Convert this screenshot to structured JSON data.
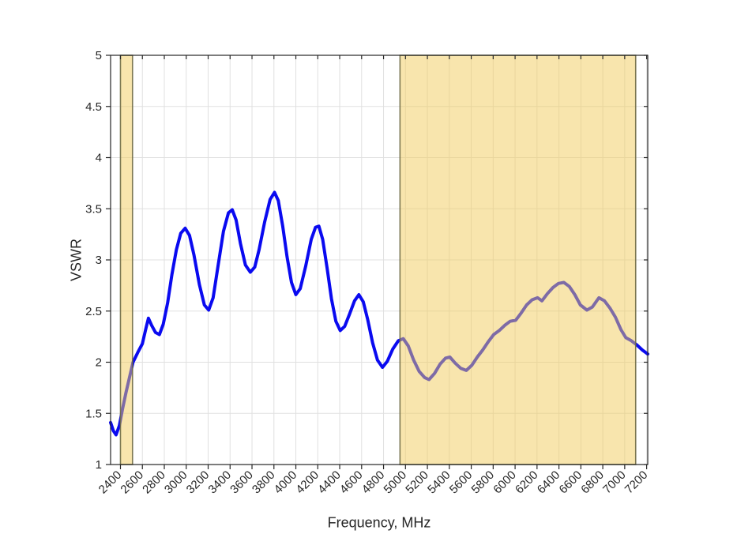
{
  "figure": {
    "xlabel": "Frequency, MHz",
    "ylabel": "VSWR"
  },
  "chart_data": {
    "type": "line",
    "title": "",
    "xlabel": "Frequency, MHz",
    "ylabel": "VSWR",
    "xlim": [
      2310,
      7210
    ],
    "ylim": [
      1,
      5
    ],
    "grid": true,
    "legend": "none",
    "xticks": [
      2400,
      2600,
      2800,
      3000,
      3200,
      3400,
      3600,
      3800,
      4000,
      4200,
      4400,
      4600,
      4800,
      5000,
      5200,
      5400,
      5600,
      5800,
      6000,
      6200,
      6400,
      6600,
      6800,
      7000,
      7200
    ],
    "yticks": [
      1,
      1.5,
      2,
      2.5,
      3,
      3.5,
      4,
      4.5,
      5
    ],
    "xtick_rotation_deg": 45,
    "colors": {
      "curve": "#0a0af0",
      "band_fill": "#f1cb5b",
      "band_fill_opacity": 0.5,
      "band_edge": "#6f6b45",
      "grid": "#e0e0e0",
      "axis": "#262626",
      "text": "#262626",
      "background": "#ffffff"
    },
    "shaded_regions": [
      {
        "x0": 2400,
        "x1": 2510
      },
      {
        "x0": 4950,
        "x1": 7100
      }
    ],
    "series": [
      {
        "name": "VSWR",
        "points": [
          [
            2310,
            1.41
          ],
          [
            2335,
            1.33
          ],
          [
            2360,
            1.29
          ],
          [
            2390,
            1.38
          ],
          [
            2420,
            1.55
          ],
          [
            2450,
            1.7
          ],
          [
            2480,
            1.84
          ],
          [
            2515,
            2.0
          ],
          [
            2560,
            2.1
          ],
          [
            2600,
            2.18
          ],
          [
            2632,
            2.33
          ],
          [
            2655,
            2.43
          ],
          [
            2685,
            2.36
          ],
          [
            2720,
            2.29
          ],
          [
            2755,
            2.27
          ],
          [
            2790,
            2.37
          ],
          [
            2830,
            2.58
          ],
          [
            2870,
            2.86
          ],
          [
            2910,
            3.1
          ],
          [
            2950,
            3.26
          ],
          [
            2990,
            3.31
          ],
          [
            3030,
            3.24
          ],
          [
            3070,
            3.05
          ],
          [
            3120,
            2.76
          ],
          [
            3165,
            2.56
          ],
          [
            3205,
            2.51
          ],
          [
            3245,
            2.63
          ],
          [
            3290,
            2.94
          ],
          [
            3340,
            3.28
          ],
          [
            3385,
            3.46
          ],
          [
            3420,
            3.49
          ],
          [
            3455,
            3.39
          ],
          [
            3495,
            3.16
          ],
          [
            3540,
            2.95
          ],
          [
            3585,
            2.88
          ],
          [
            3625,
            2.93
          ],
          [
            3665,
            3.1
          ],
          [
            3715,
            3.37
          ],
          [
            3765,
            3.59
          ],
          [
            3805,
            3.66
          ],
          [
            3840,
            3.58
          ],
          [
            3880,
            3.33
          ],
          [
            3920,
            3.03
          ],
          [
            3960,
            2.78
          ],
          [
            4000,
            2.66
          ],
          [
            4040,
            2.72
          ],
          [
            4090,
            2.94
          ],
          [
            4140,
            3.2
          ],
          [
            4180,
            3.32
          ],
          [
            4210,
            3.33
          ],
          [
            4245,
            3.2
          ],
          [
            4285,
            2.92
          ],
          [
            4325,
            2.62
          ],
          [
            4365,
            2.4
          ],
          [
            4405,
            2.31
          ],
          [
            4445,
            2.35
          ],
          [
            4490,
            2.47
          ],
          [
            4535,
            2.6
          ],
          [
            4575,
            2.66
          ],
          [
            4615,
            2.59
          ],
          [
            4655,
            2.42
          ],
          [
            4700,
            2.19
          ],
          [
            4745,
            2.02
          ],
          [
            4790,
            1.95
          ],
          [
            4835,
            2.01
          ],
          [
            4885,
            2.13
          ],
          [
            4935,
            2.21
          ],
          [
            4980,
            2.23
          ],
          [
            5025,
            2.16
          ],
          [
            5075,
            2.02
          ],
          [
            5125,
            1.91
          ],
          [
            5175,
            1.85
          ],
          [
            5215,
            1.83
          ],
          [
            5265,
            1.89
          ],
          [
            5315,
            1.98
          ],
          [
            5365,
            2.04
          ],
          [
            5405,
            2.05
          ],
          [
            5455,
            1.99
          ],
          [
            5505,
            1.94
          ],
          [
            5555,
            1.92
          ],
          [
            5605,
            1.97
          ],
          [
            5655,
            2.05
          ],
          [
            5705,
            2.12
          ],
          [
            5755,
            2.2
          ],
          [
            5805,
            2.27
          ],
          [
            5855,
            2.31
          ],
          [
            5905,
            2.36
          ],
          [
            5955,
            2.4
          ],
          [
            6005,
            2.41
          ],
          [
            6055,
            2.48
          ],
          [
            6105,
            2.56
          ],
          [
            6155,
            2.61
          ],
          [
            6205,
            2.63
          ],
          [
            6245,
            2.6
          ],
          [
            6295,
            2.67
          ],
          [
            6345,
            2.73
          ],
          [
            6395,
            2.77
          ],
          [
            6445,
            2.78
          ],
          [
            6495,
            2.74
          ],
          [
            6545,
            2.66
          ],
          [
            6595,
            2.56
          ],
          [
            6655,
            2.51
          ],
          [
            6705,
            2.54
          ],
          [
            6765,
            2.63
          ],
          [
            6815,
            2.6
          ],
          [
            6865,
            2.53
          ],
          [
            6915,
            2.44
          ],
          [
            6965,
            2.32
          ],
          [
            7010,
            2.24
          ],
          [
            7060,
            2.21
          ],
          [
            7110,
            2.17
          ],
          [
            7160,
            2.12
          ],
          [
            7210,
            2.08
          ]
        ]
      }
    ]
  }
}
